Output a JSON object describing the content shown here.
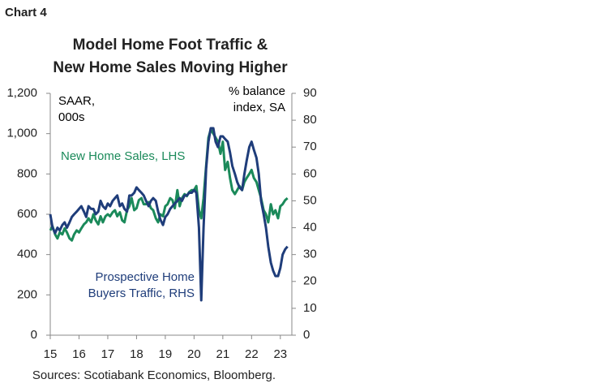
{
  "chart_data": {
    "type": "line",
    "header": "Chart 4",
    "title": [
      "Model Home Foot Traffic &",
      "New Home Sales Moving Higher"
    ],
    "y_annotation": "SAAR, 000s",
    "y2_annotation": "% balance index, SA",
    "source": "Sources: Scotiabank Economics, Bloomberg.",
    "x": [
      15,
      15.08,
      15.17,
      15.25,
      15.33,
      15.42,
      15.5,
      15.58,
      15.67,
      15.75,
      15.83,
      15.92,
      16,
      16.08,
      16.17,
      16.25,
      16.33,
      16.42,
      16.5,
      16.58,
      16.67,
      16.75,
      16.83,
      16.92,
      17,
      17.08,
      17.17,
      17.25,
      17.33,
      17.42,
      17.5,
      17.58,
      17.67,
      17.75,
      17.83,
      17.92,
      18,
      18.08,
      18.17,
      18.25,
      18.33,
      18.42,
      18.5,
      18.58,
      18.67,
      18.75,
      18.83,
      18.92,
      19,
      19.08,
      19.17,
      19.25,
      19.33,
      19.42,
      19.5,
      19.58,
      19.67,
      19.75,
      19.83,
      19.92,
      20,
      20.08,
      20.17,
      20.25,
      20.33,
      20.42,
      20.5,
      20.58,
      20.67,
      20.75,
      20.83,
      20.92,
      21,
      21.08,
      21.17,
      21.25,
      21.33,
      21.42,
      21.5,
      21.58,
      21.67,
      21.75,
      21.83,
      21.92,
      22,
      22.08,
      22.17,
      22.25,
      22.33,
      22.42,
      22.5,
      22.58,
      22.67,
      22.75,
      22.83,
      22.92,
      23,
      23.08,
      23.17,
      23.25
    ],
    "xlim": [
      15,
      23.4
    ],
    "xticks": [
      15,
      16,
      17,
      18,
      19,
      20,
      21,
      22,
      23
    ],
    "ylim": [
      0,
      1200
    ],
    "yticks": [
      {
        "value": 1200,
        "label": "1,200"
      },
      {
        "value": 1000,
        "label": "1,000"
      },
      800,
      600,
      400,
      200,
      0
    ],
    "y2lim": [
      0,
      90
    ],
    "y2ticks": [
      90,
      80,
      70,
      60,
      50,
      40,
      30,
      20,
      10,
      0
    ],
    "series": [
      {
        "name": "New Home Sales, LHS",
        "color": "#1b8a5a",
        "values": [
          520,
          540,
          500,
          480,
          510,
          500,
          530,
          510,
          480,
          470,
          500,
          520,
          510,
          530,
          550,
          560,
          580,
          560,
          600,
          570,
          550,
          590,
          560,
          590,
          600,
          590,
          610,
          620,
          590,
          610,
          570,
          560,
          620,
          640,
          680,
          620,
          630,
          670,
          680,
          650,
          650,
          660,
          630,
          620,
          580,
          560,
          600,
          590,
          640,
          650,
          680,
          670,
          630,
          720,
          640,
          680,
          700,
          690,
          710,
          720,
          720,
          740,
          620,
          580,
          680,
          840,
          980,
          1020,
          1000,
          980,
          960,
          900,
          960,
          820,
          860,
          780,
          720,
          700,
          720,
          740,
          720,
          760,
          780,
          800,
          820,
          780,
          760,
          720,
          680,
          620,
          600,
          560,
          650,
          600,
          620,
          580,
          640,
          650,
          670,
          680
        ]
      },
      {
        "name": "Prospective Home Buyers Traffic, RHS",
        "color": "#1f3d7a",
        "axis": "y2",
        "values": [
          45,
          40,
          38,
          40,
          39,
          41,
          42,
          40,
          42,
          44,
          45,
          46,
          47,
          48,
          46,
          44,
          48,
          47,
          47,
          45,
          46,
          50,
          48,
          47,
          49,
          48,
          50,
          51,
          52,
          48,
          49,
          47,
          46,
          52,
          52,
          53,
          55,
          54,
          53,
          52,
          50,
          48,
          50,
          51,
          50,
          46,
          43,
          41,
          44,
          45,
          47,
          48,
          49,
          50,
          51,
          50,
          52,
          52,
          53,
          53,
          54,
          53,
          40,
          13,
          40,
          62,
          72,
          77,
          77,
          72,
          70,
          74,
          74,
          73,
          72,
          68,
          63,
          60,
          57,
          55,
          54,
          60,
          65,
          70,
          72,
          69,
          66,
          60,
          50,
          45,
          40,
          33,
          27,
          24,
          22,
          22,
          25,
          30,
          32,
          33
        ]
      }
    ]
  }
}
